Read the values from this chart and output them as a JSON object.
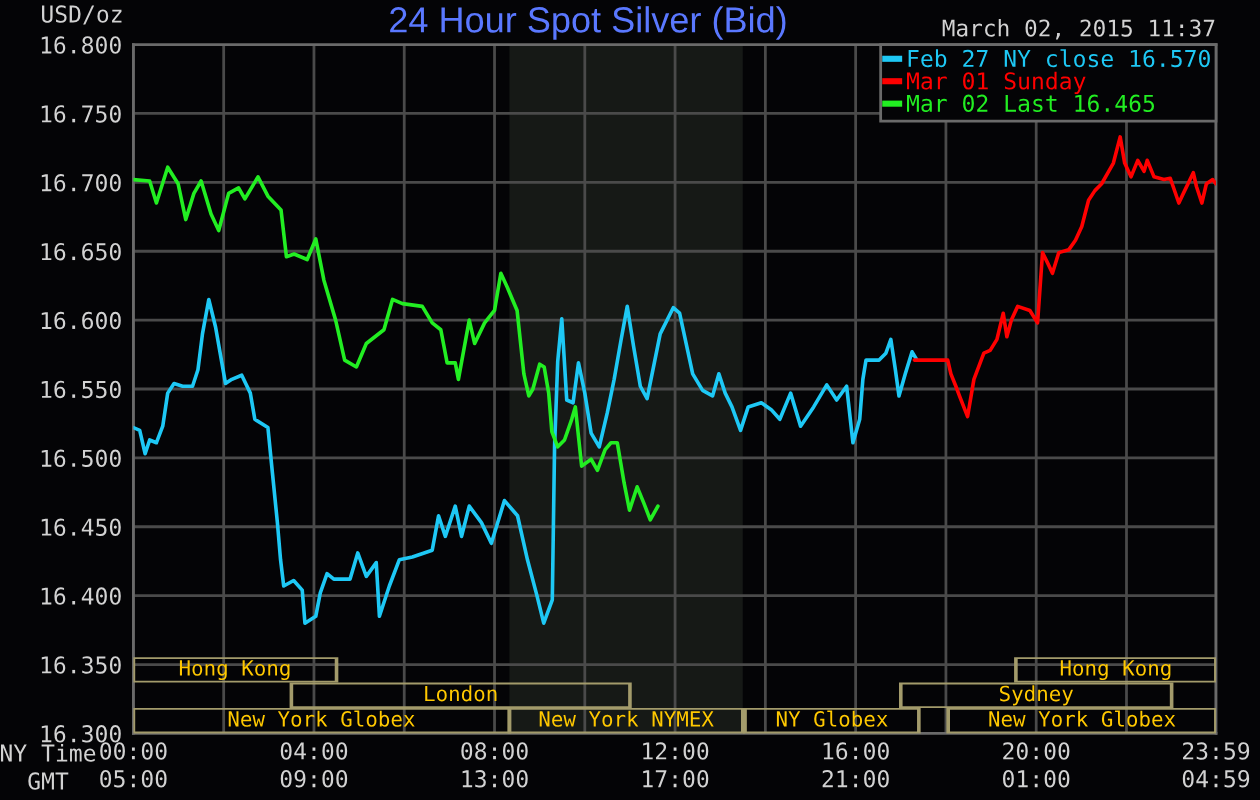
{
  "chart_data": [
    {
      "type": "line",
      "title": "24 Hour Spot Silver (Bid)",
      "subtitle": "March 02, 2015 11:37",
      "ylabel": "USD/oz",
      "xlabel": "NY Time",
      "x2label": "GMT",
      "xlim": [
        0,
        23.983
      ],
      "xticks": [
        {
          "value": 0,
          "label": "00:00"
        },
        {
          "value": 2,
          "label": null
        },
        {
          "value": 4,
          "label": "04:00"
        },
        {
          "value": 6,
          "label": null
        },
        {
          "value": 8,
          "label": "08:00"
        },
        {
          "value": 10,
          "label": null
        },
        {
          "value": 12,
          "label": "12:00"
        },
        {
          "value": 14,
          "label": null
        },
        {
          "value": 16,
          "label": "16:00"
        },
        {
          "value": 18,
          "label": null
        },
        {
          "value": 20,
          "label": "20:00"
        },
        {
          "value": 22,
          "label": null
        },
        {
          "value": 23.983,
          "label": "23:59"
        }
      ],
      "x2lim": [
        "2015-03-02T05:00",
        "2015-03-03T04:59"
      ],
      "x2ticks": [
        {
          "value": "2015-03-02T05:00",
          "label": "05:00"
        },
        {
          "value": "2015-03-02T09:00",
          "label": "09:00"
        },
        {
          "value": "2015-03-02T13:00",
          "label": "13:00"
        },
        {
          "value": "2015-03-02T17:00",
          "label": "17:00"
        },
        {
          "value": "2015-03-02T21:00",
          "label": "21:00"
        },
        {
          "value": "2015-03-03T01:00",
          "label": "01:00"
        },
        {
          "value": "2015-03-03T04:59",
          "label": "04:59"
        }
      ],
      "ylim": [
        16.3,
        16.8
      ],
      "yticks": [
        {
          "value": 16.3,
          "label": "16.300"
        },
        {
          "value": 16.35,
          "label": "16.350"
        },
        {
          "value": 16.4,
          "label": "16.400"
        },
        {
          "value": 16.45,
          "label": "16.450"
        },
        {
          "value": 16.5,
          "label": "16.500"
        },
        {
          "value": 16.55,
          "label": "16.550"
        },
        {
          "value": 16.6,
          "label": "16.600"
        },
        {
          "value": 16.65,
          "label": "16.650"
        },
        {
          "value": 16.7,
          "label": "16.700"
        },
        {
          "value": 16.75,
          "label": "16.750"
        },
        {
          "value": 16.8,
          "label": "16.800"
        }
      ],
      "grid": true,
      "legend": "top right",
      "bands": [
        {
          "axis": "x",
          "from": 8.33,
          "to": 13.5,
          "color": "#161916"
        }
      ],
      "series": [
        {
          "name": "Feb 27 NY close 16.570",
          "color": "#1ec8f5",
          "x": [
            0,
            0.14,
            0.26,
            0.36,
            0.51,
            0.65,
            0.76,
            0.9,
            1.09,
            1.31,
            1.43,
            1.53,
            1.67,
            1.82,
            1.96,
            2.04,
            2.18,
            2.4,
            2.59,
            2.69,
            2.98,
            3.08,
            3.19,
            3.26,
            3.33,
            3.55,
            3.74,
            3.8,
            4.04,
            4.14,
            4.29,
            4.44,
            4.8,
            4.97,
            5.16,
            5.38,
            5.45,
            5.67,
            5.89,
            6.18,
            6.62,
            6.76,
            6.91,
            7.13,
            7.27,
            7.44,
            7.71,
            7.93,
            8.22,
            8.51,
            8.73,
            8.94,
            9.09,
            9.28,
            9.33,
            9.4,
            9.49,
            9.6,
            9.74,
            9.86,
            10.0,
            10.14,
            10.32,
            10.5,
            10.65,
            10.8,
            10.94,
            11.08,
            11.23,
            11.38,
            11.67,
            11.96,
            12.1,
            12.39,
            12.61,
            12.83,
            12.97,
            13.11,
            13.26,
            13.45,
            13.62,
            13.91,
            14.13,
            14.32,
            14.56,
            14.78,
            15.07,
            15.36,
            15.58,
            15.8,
            15.94,
            16.09,
            16.16,
            16.23,
            16.52,
            16.67,
            16.78,
            16.88,
            16.96,
            17.1,
            17.25,
            17.36
          ],
          "values": [
            16.522,
            16.52,
            16.503,
            16.513,
            16.511,
            16.523,
            16.547,
            16.554,
            16.552,
            16.552,
            16.564,
            16.59,
            16.615,
            16.595,
            16.569,
            16.554,
            16.557,
            16.56,
            16.547,
            16.528,
            16.522,
            16.489,
            16.453,
            16.426,
            16.407,
            16.411,
            16.404,
            16.38,
            16.385,
            16.402,
            16.416,
            16.412,
            16.412,
            16.431,
            16.414,
            16.424,
            16.385,
            16.407,
            16.426,
            16.428,
            16.433,
            16.458,
            16.443,
            16.465,
            16.443,
            16.465,
            16.453,
            16.438,
            16.469,
            16.458,
            16.426,
            16.4,
            16.38,
            16.397,
            16.508,
            16.57,
            16.601,
            16.542,
            16.54,
            16.569,
            16.547,
            16.518,
            16.508,
            16.533,
            16.557,
            16.585,
            16.61,
            16.581,
            16.552,
            16.543,
            16.59,
            16.609,
            16.605,
            16.561,
            16.549,
            16.545,
            16.561,
            16.547,
            16.537,
            16.52,
            16.537,
            16.54,
            16.535,
            16.528,
            16.547,
            16.523,
            16.537,
            16.553,
            16.542,
            16.552,
            16.511,
            16.528,
            16.557,
            16.571,
            16.571,
            16.576,
            16.586,
            16.564,
            16.545,
            16.561,
            16.577,
            16.571
          ]
        },
        {
          "name": "Mar 01 Sunday",
          "color": "#ff0000",
          "x": [
            17.3,
            18.04,
            18.11,
            18.22,
            18.3,
            18.48,
            18.62,
            18.84,
            18.98,
            19.13,
            19.27,
            19.35,
            19.45,
            19.59,
            19.86,
            20.03,
            20.14,
            20.26,
            20.36,
            20.5,
            20.72,
            20.87,
            21.01,
            21.16,
            21.3,
            21.45,
            21.59,
            21.71,
            21.86,
            21.96,
            22.1,
            22.25,
            22.39,
            22.46,
            22.61,
            22.83,
            22.97,
            23.16,
            23.26,
            23.48,
            23.55,
            23.67,
            23.77,
            23.91,
            23.98
          ],
          "values": [
            16.571,
            16.571,
            16.561,
            16.552,
            16.545,
            16.53,
            16.557,
            16.576,
            16.578,
            16.586,
            16.605,
            16.588,
            16.6,
            16.61,
            16.607,
            16.598,
            16.649,
            16.641,
            16.634,
            16.649,
            16.651,
            16.658,
            16.668,
            16.687,
            16.694,
            16.699,
            16.707,
            16.714,
            16.733,
            16.714,
            16.704,
            16.716,
            16.708,
            16.716,
            16.704,
            16.702,
            16.703,
            16.685,
            16.692,
            16.707,
            16.697,
            16.685,
            16.699,
            16.702,
            16.699
          ]
        },
        {
          "name": "Mar 02 Last 16.465",
          "color": "#22ee22",
          "x": [
            0,
            0.36,
            0.51,
            0.76,
            0.99,
            1.16,
            1.34,
            1.5,
            1.72,
            1.89,
            2.11,
            2.33,
            2.47,
            2.76,
            2.98,
            3.27,
            3.39,
            3.56,
            3.85,
            4.04,
            4.22,
            4.48,
            4.68,
            4.94,
            5.16,
            5.55,
            5.74,
            5.96,
            6.4,
            6.62,
            6.81,
            6.95,
            7.13,
            7.2,
            7.44,
            7.56,
            7.78,
            8.0,
            8.14,
            8.28,
            8.5,
            8.65,
            8.76,
            8.85,
            9.0,
            9.1,
            9.2,
            9.27,
            9.4,
            9.55,
            9.71,
            9.79,
            9.93,
            10.14,
            10.28,
            10.45,
            10.58,
            10.72,
            10.87,
            10.99,
            11.16,
            11.31,
            11.45,
            11.62
          ],
          "values": [
            16.702,
            16.701,
            16.685,
            16.711,
            16.699,
            16.673,
            16.692,
            16.701,
            16.677,
            16.665,
            16.692,
            16.696,
            16.688,
            16.704,
            16.69,
            16.68,
            16.646,
            16.648,
            16.644,
            16.659,
            16.629,
            16.6,
            16.571,
            16.566,
            16.583,
            16.593,
            16.615,
            16.612,
            16.61,
            16.598,
            16.593,
            16.569,
            16.569,
            16.557,
            16.6,
            16.583,
            16.598,
            16.607,
            16.634,
            16.624,
            16.607,
            16.561,
            16.545,
            16.55,
            16.568,
            16.566,
            16.547,
            16.519,
            16.508,
            16.513,
            16.528,
            16.537,
            16.494,
            16.499,
            16.491,
            16.506,
            16.511,
            16.511,
            16.482,
            16.462,
            16.479,
            16.467,
            16.455,
            16.465
          ]
        }
      ]
    },
    {
      "type": "bar",
      "orientation": "horizontal",
      "categories": [
        null
      ],
      "xlim": [
        0,
        23.983
      ],
      "tick_labels": false,
      "series": [
        {
          "name": "Hong Kong",
          "color": "#a39b6b",
          "values": [
            4.5
          ],
          "base": [
            0
          ]
        },
        {
          "name": "Hong Kong",
          "color": "#a39b6b",
          "values": [
            4.43
          ],
          "base": [
            19.55
          ]
        }
      ]
    },
    {
      "type": "bar",
      "orientation": "horizontal",
      "categories": [
        null
      ],
      "xlim": [
        0,
        23.983
      ],
      "tick_labels": false,
      "series": [
        {
          "name": "London",
          "color": "#a39b6b",
          "values": [
            7.5
          ],
          "base": [
            3.5
          ]
        },
        {
          "name": "Sydney",
          "color": "#a39b6b",
          "values": [
            6.0
          ],
          "base": [
            17.0
          ]
        }
      ]
    },
    {
      "type": "bar",
      "orientation": "horizontal",
      "categories": [
        null
      ],
      "xlim": [
        0,
        23.983
      ],
      "tick_labels": false,
      "series": [
        {
          "name": "New York Globex",
          "color": "#a39b6b",
          "values": [
            8.33
          ],
          "base": [
            0
          ]
        },
        {
          "name": "New York NYMEX",
          "color": "#a39b6b",
          "values": [
            5.17
          ],
          "base": [
            8.33
          ]
        },
        {
          "name": "NY Globex",
          "color": "#a39b6b",
          "values": [
            3.85
          ],
          "base": [
            13.55
          ]
        },
        {
          "name": "New York Globex",
          "color": "#a39b6b",
          "values": [
            5.93
          ],
          "base": [
            18.05
          ]
        }
      ]
    }
  ]
}
